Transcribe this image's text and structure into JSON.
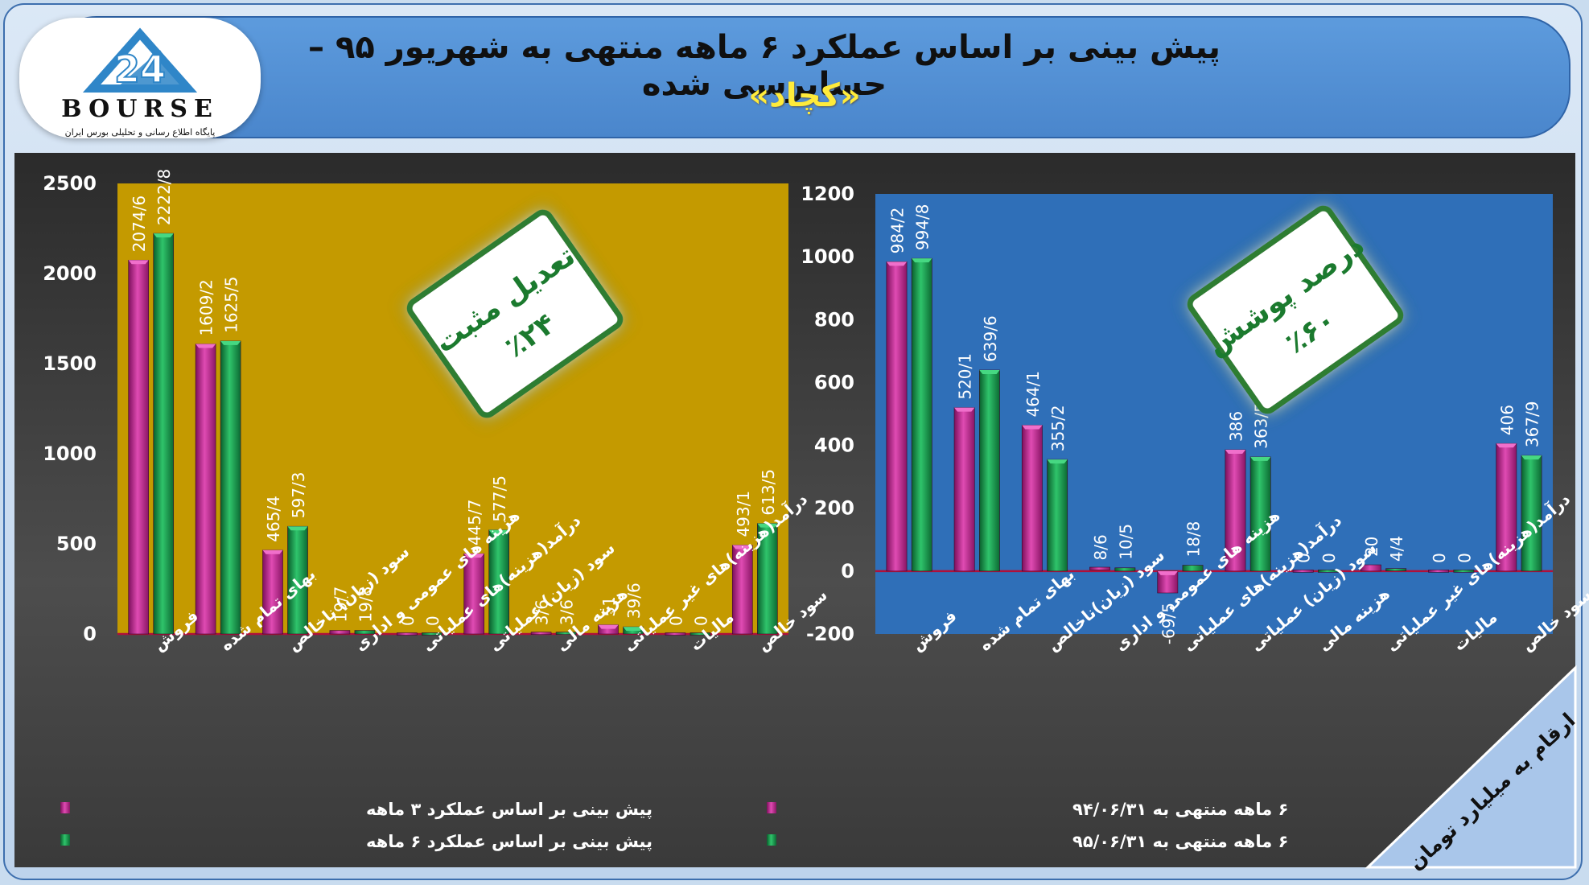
{
  "header": {
    "title": "پیش بینی بر اساس عملکرد ۶ ماهه منتهی به شهریور ۹۵ – حسابرسی  شده",
    "subtitle": "«کچاد»"
  },
  "logo": {
    "word": "BOURSE",
    "tagline": "پایگاه اطلاع رسانی و تحلیلی بورس ایران"
  },
  "units_note": "ارقام به میلیارد تومان",
  "colors": {
    "magenta": "#c0208f",
    "green": "#139a4b",
    "gold": "#c19a00",
    "blue": "#2f6fb8"
  },
  "chart_data": [
    {
      "type": "bar",
      "categories": [
        "فروش",
        "بهای تمام شده",
        "سود (زیان) ناخالص",
        "هزینه های عمومی و اداری",
        "درآمد(هزینه)های عملیاتی",
        "سود (زیان) عملیاتی",
        "هزینه مالی",
        "درآمد(هزینه)های غیر عملیاتی",
        "مالیات",
        "سود خالص"
      ],
      "series": [
        {
          "name": "پیش بینی بر اساس عملکرد ۳ ماهه",
          "values": [
            2074.6,
            1609.2,
            465.4,
            19.7,
            0,
            445.7,
            3.6,
            51,
            0,
            493.1
          ],
          "labels": [
            "2074/6",
            "1609/2",
            "465/4",
            "19/7",
            "0",
            "445/7",
            "3/6",
            "51",
            "0",
            "493/1"
          ]
        },
        {
          "name": "پیش بینی بر اساس عملکرد ۶ ماهه",
          "values": [
            2222.8,
            1625.5,
            597.3,
            19.8,
            0,
            577.5,
            3.6,
            39.6,
            0,
            613.5
          ],
          "labels": [
            "2222/8",
            "1625/5",
            "597/3",
            "19/8",
            "0",
            "577/5",
            "3/6",
            "39/6",
            "0",
            "613/5"
          ]
        }
      ],
      "ylim": [
        0,
        2500
      ],
      "yticks": [
        0,
        500,
        1000,
        1500,
        2000,
        2500
      ],
      "annotation": {
        "line1": "تعدیل مثبت",
        "line2": "٪۲۴"
      },
      "legend": "bottom"
    },
    {
      "type": "bar",
      "categories": [
        "فروش",
        "بهای تمام شده",
        "سود (زیان)ناخالص",
        "هزینه های عمومی و اداری",
        "درآمد(هزینه)های عملیاتی",
        "سود (زیان) عملیاتی",
        "هزینه مالی",
        "درآمد(هزینه)های غیر عملیاتی",
        "مالیات",
        "سود خالص"
      ],
      "series": [
        {
          "name": "۶ ماهه منتهی به ۹۴/۰۶/۳۱",
          "values": [
            984.2,
            520.1,
            464.1,
            8.6,
            -69.5,
            386,
            0,
            20,
            0,
            406
          ],
          "labels": [
            "984/2",
            "520/1",
            "464/1",
            "8/6",
            "-69/5",
            "386",
            "0",
            "20",
            "0",
            "406"
          ]
        },
        {
          "name": "۶ ماهه منتهی به ۹۵/۰۶/۳۱",
          "values": [
            994.8,
            639.6,
            355.2,
            10.5,
            18.8,
            363.5,
            0,
            4.4,
            0,
            367.9
          ],
          "labels": [
            "994/8",
            "639/6",
            "355/2",
            "10/5",
            "18/8",
            "363/5",
            "0",
            "4/4",
            "0",
            "367/9"
          ]
        }
      ],
      "ylim": [
        -200,
        1200
      ],
      "yticks": [
        -200,
        0,
        200,
        400,
        600,
        800,
        1000,
        1200
      ],
      "annotation": {
        "line1": "درصد پوشش",
        "line2": "٪۶۰"
      },
      "legend": "bottom"
    }
  ]
}
